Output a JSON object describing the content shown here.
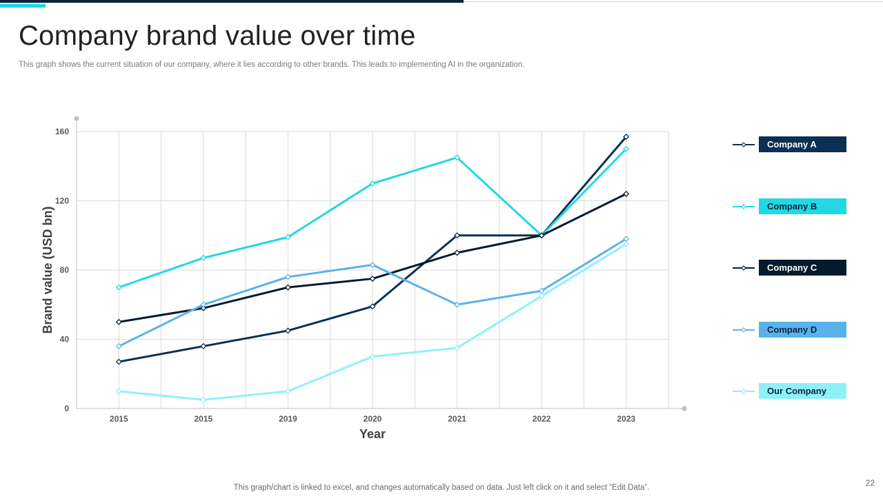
{
  "slide": {
    "title": "Company brand value over time",
    "subtitle": "This graph shows the current situation of our company, where it lies according to other brands. This leads to implementing AI in the organization.",
    "footer_note": "This graph/chart is linked to excel,  and changes automatically based on data. Just left click on it and select “Edit Data”.",
    "page_number": "22"
  },
  "colors": {
    "brand_dark": "#0a2440",
    "brand_accent": "#1fd6e6"
  },
  "chart_data": {
    "type": "line",
    "title": "",
    "xlabel": "Year",
    "ylabel": "Brand value (USD bn)",
    "categories": [
      "2015",
      "2015",
      "2019",
      "2020",
      "2021",
      "2022",
      "2023"
    ],
    "ylim": [
      0,
      160
    ],
    "yticks": [
      0,
      40,
      80,
      120,
      160
    ],
    "grid": true,
    "legend_position": "right",
    "series": [
      {
        "name": "Company A",
        "color": "#0c2f52",
        "text_color": "#ffffff",
        "values": [
          27,
          36,
          45,
          59,
          100,
          100,
          157
        ]
      },
      {
        "name": "Company B",
        "color": "#21d8e3",
        "text_color": "#0a2440",
        "values": [
          70,
          87,
          99,
          130,
          145,
          100,
          150
        ]
      },
      {
        "name": "Company C",
        "color": "#071a2e",
        "text_color": "#ffffff",
        "values": [
          50,
          58,
          70,
          75,
          90,
          100,
          124
        ]
      },
      {
        "name": "Company D",
        "color": "#5ab2ec",
        "text_color": "#0a2440",
        "values": [
          36,
          60,
          76,
          83,
          60,
          68,
          98
        ]
      },
      {
        "name": "Our Company",
        "color": "#8ff1f8",
        "text_color": "#0a2440",
        "values": [
          10,
          5,
          10,
          30,
          35,
          65,
          95
        ]
      }
    ]
  }
}
